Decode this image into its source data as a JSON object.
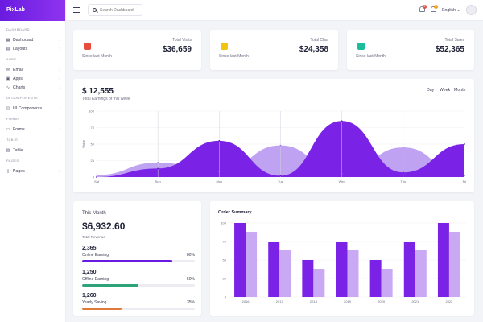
{
  "brand": {
    "name": "PixLab"
  },
  "sidebar": {
    "sections": [
      {
        "title": "DASHBOARD",
        "items": [
          {
            "label": "Dashboard",
            "icon": "dashboard-icon"
          },
          {
            "label": "Layouts",
            "icon": "layouts-icon"
          }
        ]
      },
      {
        "title": "APPS",
        "items": [
          {
            "label": "Email",
            "icon": "email-icon"
          },
          {
            "label": "Apps",
            "icon": "apps-icon"
          },
          {
            "label": "Charts",
            "icon": "charts-icon"
          }
        ]
      },
      {
        "title": "UI COMPONENTS",
        "items": [
          {
            "label": "UI Components",
            "icon": "components-icon"
          }
        ]
      },
      {
        "title": "FORMS",
        "items": [
          {
            "label": "Forms",
            "icon": "forms-icon"
          }
        ]
      },
      {
        "title": "TABLE",
        "items": [
          {
            "label": "Table",
            "icon": "table-icon"
          }
        ]
      },
      {
        "title": "PAGES",
        "items": [
          {
            "label": "Pages",
            "icon": "pages-icon"
          }
        ]
      }
    ]
  },
  "topbar": {
    "search_placeholder": "Search Dashboard",
    "notifications": [
      {
        "count": "2",
        "color": "#e74c3c"
      },
      {
        "count": "3",
        "color": "#f39c12"
      }
    ],
    "language": "English"
  },
  "stats": [
    {
      "label": "Total Visits",
      "value": "$36,659",
      "since": "Since last Month",
      "icon": "box-icon",
      "color": "#e74c3c"
    },
    {
      "label": "Total Chat",
      "value": "$24,358",
      "since": "Since last Month",
      "icon": "chat-icon",
      "color": "#f1c40f"
    },
    {
      "label": "Total Sales",
      "value": "$52,365",
      "since": "Since last Month",
      "icon": "chart-icon",
      "color": "#1abc9c"
    }
  ],
  "earnings": {
    "value": "$ 12,555",
    "subtitle": "Total Earnings of this week",
    "ranges": [
      "Day",
      "Week",
      "Month"
    ],
    "chart_data": {
      "type": "area",
      "x": [
        "Sat",
        "Sun",
        "Mon",
        "Tue",
        "Wed",
        "Thu",
        "Fri"
      ],
      "ylim": [
        0,
        100
      ],
      "yticks": [
        0,
        25,
        50,
        75,
        100
      ],
      "ylabel": "Value",
      "series": [
        {
          "name": "",
          "values": [
            3,
            22,
            8,
            48,
            5,
            45,
            2
          ],
          "color": "#bfa3f2"
        },
        {
          "name": "",
          "values": [
            0,
            13,
            55,
            2,
            85,
            7,
            50
          ],
          "color": "#7a22e6"
        }
      ]
    }
  },
  "this_month": {
    "title": "This Month",
    "value": "$6,932.60",
    "subtitle": "Total Revenue",
    "items": [
      {
        "amount": "2,365",
        "label": "Online Earning",
        "percent": "80%",
        "fraction": 0.8,
        "color": "#6a1be0"
      },
      {
        "amount": "1,250",
        "label": "Offline Earning",
        "percent": "50%",
        "fraction": 0.5,
        "color": "#2ea37a"
      },
      {
        "amount": "1,260",
        "label": "Yearly Saving",
        "percent": "35%",
        "fraction": 0.35,
        "color": "#e07a3a"
      }
    ]
  },
  "order_summary": {
    "title": "Order Summary",
    "chart_data": {
      "type": "bar",
      "categories": [
        "2016",
        "2017",
        "2018",
        "2019",
        "2020",
        "2021",
        "2022"
      ],
      "ylim": [
        0,
        100
      ],
      "yticks": [
        0,
        25,
        50,
        75,
        100
      ],
      "series": [
        {
          "name": "",
          "values": [
            100,
            75,
            50,
            75,
            50,
            75,
            100
          ],
          "color": "#7a22e6"
        },
        {
          "name": "",
          "values": [
            88,
            64,
            38,
            64,
            38,
            64,
            88
          ],
          "color": "#c9a8f4"
        }
      ]
    }
  }
}
